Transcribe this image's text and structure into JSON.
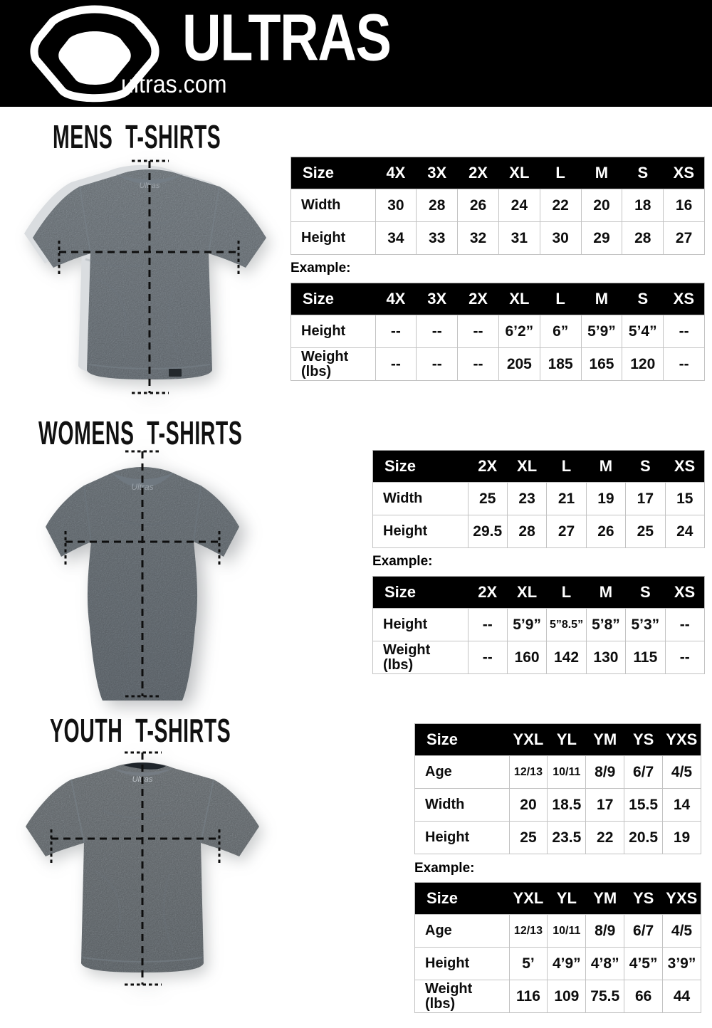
{
  "header": {
    "brand": "ULTRAS",
    "site": "ultras.com"
  },
  "sections": [
    {
      "title": "MENS T-SHIRTS",
      "neck_label": "Ultras",
      "example_label": "Example:",
      "size_table": {
        "columns": [
          "Size",
          "4X",
          "3X",
          "2X",
          "XL",
          "L",
          "M",
          "S",
          "XS"
        ],
        "rows": [
          {
            "label": "Width",
            "values": [
              "30",
              "28",
              "26",
              "24",
              "22",
              "20",
              "18",
              "16"
            ]
          },
          {
            "label": "Height",
            "values": [
              "34",
              "33",
              "32",
              "31",
              "30",
              "29",
              "28",
              "27"
            ]
          }
        ]
      },
      "example_table": {
        "columns": [
          "Size",
          "4X",
          "3X",
          "2X",
          "XL",
          "L",
          "M",
          "S",
          "XS"
        ],
        "rows": [
          {
            "label": "Height",
            "values": [
              "--",
              "--",
              "--",
              "6’2”",
              "6”",
              "5’9”",
              "5’4”",
              "--"
            ]
          },
          {
            "label": "Weight\n(lbs)",
            "values": [
              "--",
              "--",
              "--",
              "205",
              "185",
              "165",
              "120",
              "--"
            ]
          }
        ]
      }
    },
    {
      "title": "WOMENS T-SHIRTS",
      "neck_label": "Ultras",
      "example_label": "Example:",
      "size_table": {
        "columns": [
          "Size",
          "2X",
          "XL",
          "L",
          "M",
          "S",
          "XS"
        ],
        "rows": [
          {
            "label": "Width",
            "values": [
              "25",
              "23",
              "21",
              "19",
              "17",
              "15"
            ]
          },
          {
            "label": "Height",
            "values": [
              "29.5",
              "28",
              "27",
              "26",
              "25",
              "24"
            ]
          }
        ]
      },
      "example_table": {
        "columns": [
          "Size",
          "2X",
          "XL",
          "L",
          "M",
          "S",
          "XS"
        ],
        "rows": [
          {
            "label": "Height",
            "values": [
              "--",
              "5’9”",
              "5”8.5”",
              "5’8”",
              "5’3”",
              "--"
            ]
          },
          {
            "label": "Weight\n(lbs)",
            "values": [
              "--",
              "160",
              "142",
              "130",
              "115",
              "--"
            ]
          }
        ]
      }
    },
    {
      "title": "YOUTH T-SHIRTS",
      "neck_label": "Ultras",
      "example_label": "Example:",
      "size_table": {
        "columns": [
          "Size",
          "YXL",
          "YL",
          "YM",
          "YS",
          "YXS"
        ],
        "rows": [
          {
            "label": "Age",
            "values": [
              "12/13",
              "10/11",
              "8/9",
              "6/7",
              "4/5"
            ]
          },
          {
            "label": "Width",
            "values": [
              "20",
              "18.5",
              "17",
              "15.5",
              "14"
            ]
          },
          {
            "label": "Height",
            "values": [
              "25",
              "23.5",
              "22",
              "20.5",
              "19"
            ]
          }
        ]
      },
      "example_table": {
        "columns": [
          "Size",
          "YXL",
          "YL",
          "YM",
          "YS",
          "YXS"
        ],
        "rows": [
          {
            "label": "Age",
            "values": [
              "12/13",
              "10/11",
              "8/9",
              "6/7",
              "4/5"
            ]
          },
          {
            "label": "Height",
            "values": [
              "5’",
              "4’9”",
              "4’8”",
              "4’5”",
              "3’9”"
            ]
          },
          {
            "label": "Weight\n(lbs)",
            "values": [
              "116",
              "109",
              "75.5",
              "66",
              "44"
            ]
          }
        ]
      }
    }
  ]
}
